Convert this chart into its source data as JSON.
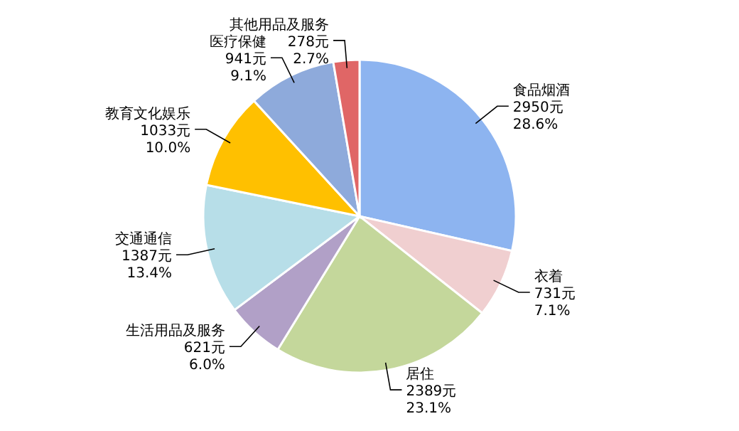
{
  "chart_data": {
    "type": "pie",
    "categories": [
      "食品烟酒",
      "衣着",
      "居住",
      "生活用品及服务",
      "交通通信",
      "教育文化娱乐",
      "医疗保健",
      "其他用品及服务"
    ],
    "values": [
      2950,
      731,
      2389,
      621,
      1387,
      1033,
      941,
      278
    ],
    "value_labels": [
      "2950元\n28.6%",
      "731元\n7.1%",
      "2389元\n23.1%",
      "621元\n6.0%",
      "1387元\n13.4%",
      "1033元\n10.0%",
      "941元\n9.1%",
      "278元\n2.7%"
    ],
    "colors": [
      "#8db4f0",
      "#f0cfd0",
      "#c4d79b",
      "#b1a0c7",
      "#b7dee8",
      "#ffc000",
      "#8eaadb",
      "#e06666"
    ]
  }
}
